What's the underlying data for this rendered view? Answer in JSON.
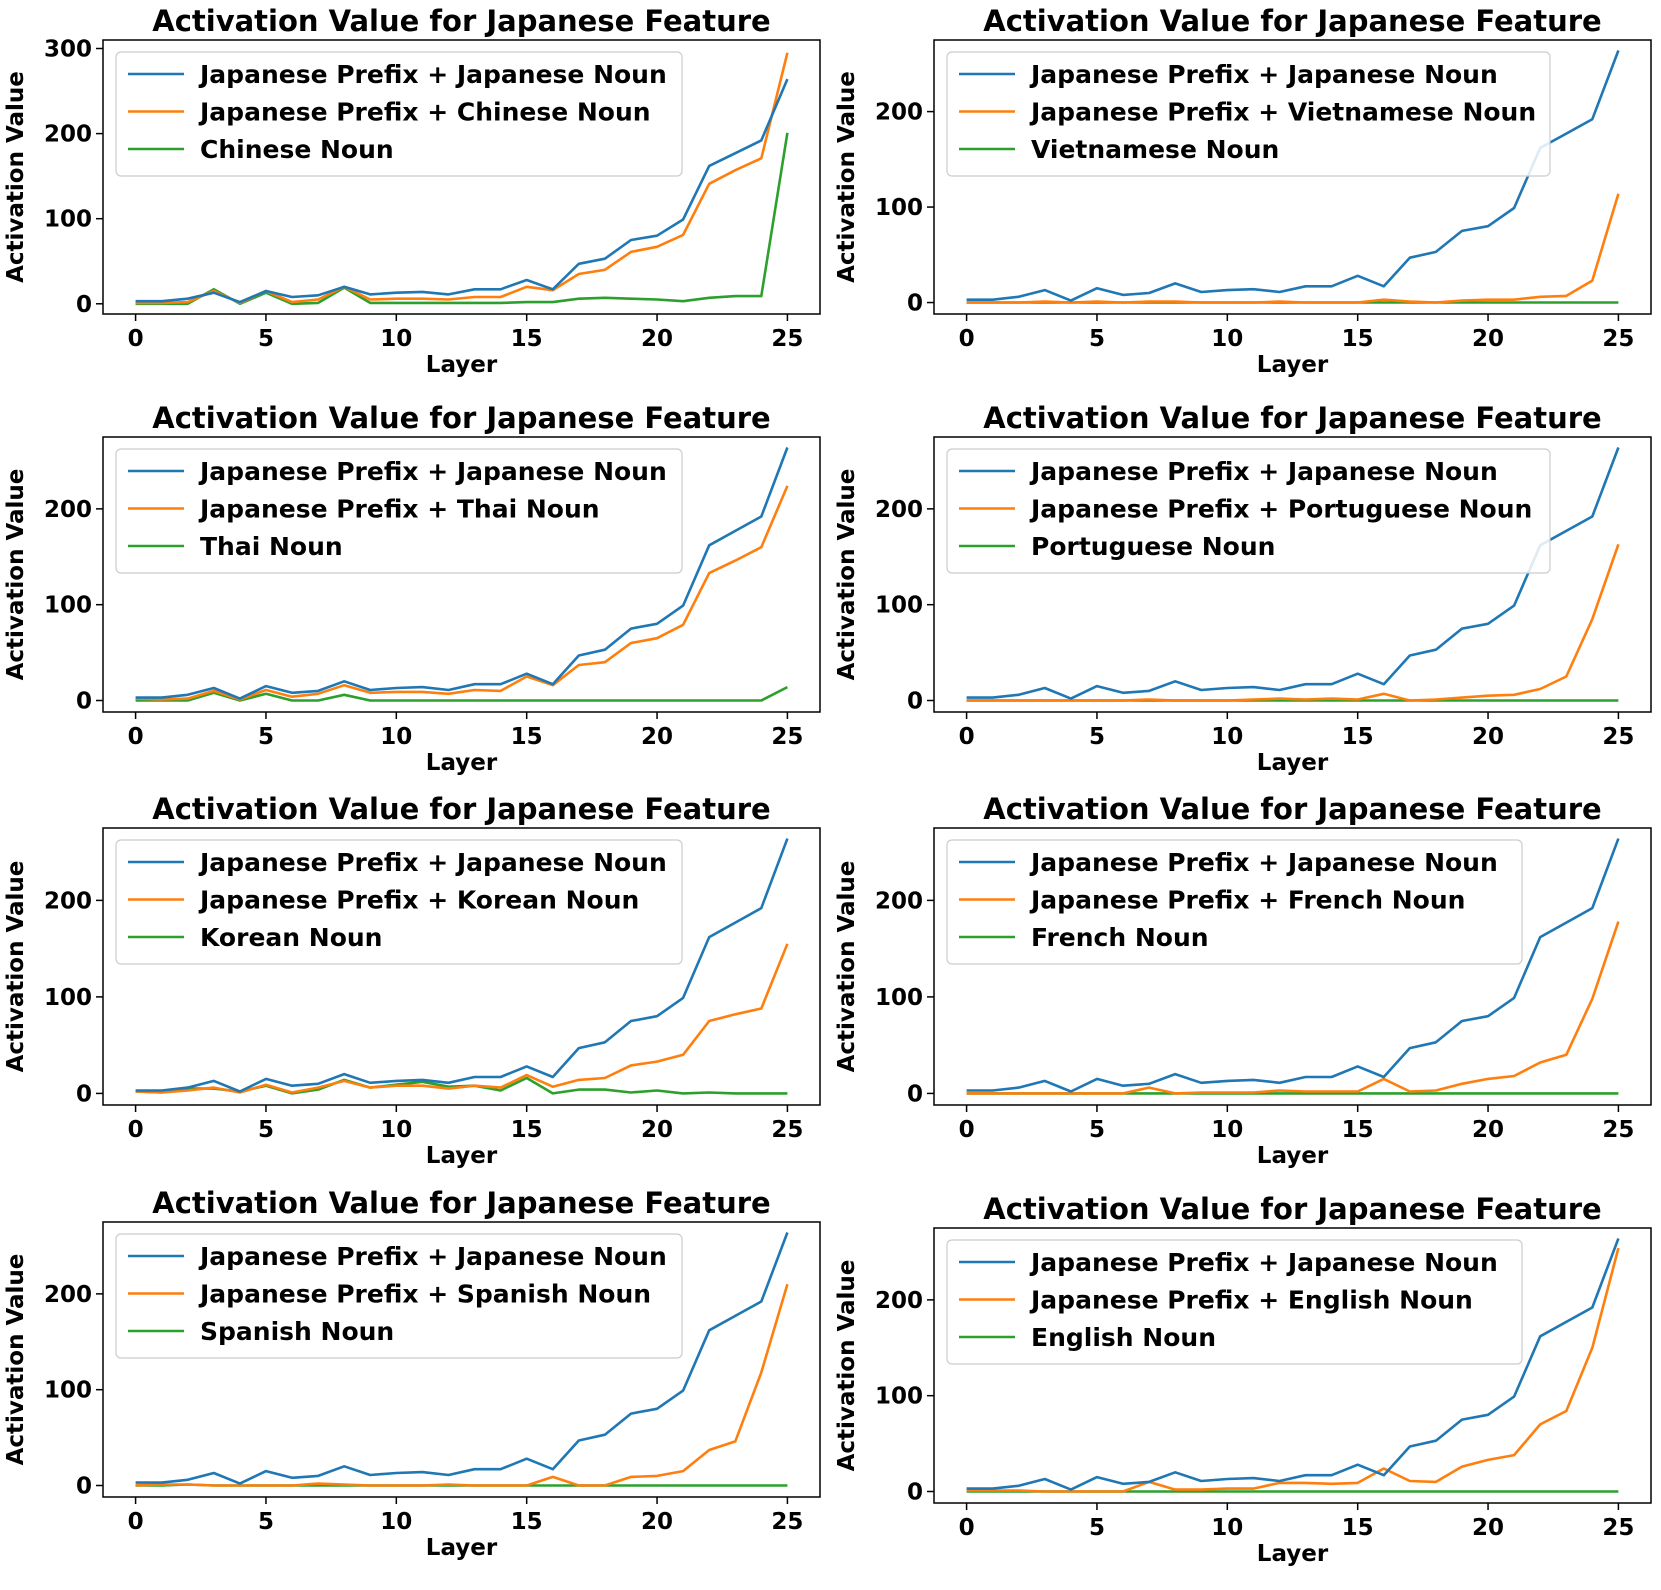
{
  "colors": {
    "s1": "#1f77b4",
    "s2": "#ff7f0e",
    "s3": "#2ca02c"
  },
  "chart_data": [
    {
      "type": "line",
      "title": "Activation Value for Japanese Feature",
      "xlabel": "Layer",
      "ylabel": "Activation Value",
      "xlim": [
        -1.25,
        26.25
      ],
      "ylim": [
        -12,
        310
      ],
      "xticks": [
        0,
        5,
        10,
        15,
        20,
        25
      ],
      "yticks": [
        0,
        100,
        200,
        300
      ],
      "legend_position": "upper-left",
      "series": [
        {
          "name": "Japanese Prefix + Japanese Noun",
          "values": [
            3,
            3,
            6,
            13,
            2,
            15,
            8,
            10,
            20,
            11,
            13,
            14,
            11,
            17,
            17,
            28,
            17,
            47,
            53,
            75,
            80,
            99,
            162,
            177,
            192,
            264
          ]
        },
        {
          "name": "Japanese Prefix + Chinese Noun",
          "values": [
            1,
            1,
            2,
            15,
            1,
            15,
            2,
            5,
            20,
            5,
            6,
            6,
            5,
            8,
            8,
            20,
            16,
            35,
            40,
            61,
            67,
            81,
            141,
            157,
            171,
            295
          ]
        },
        {
          "name": "Chinese Noun",
          "values": [
            0,
            0,
            0,
            17,
            0,
            13,
            0,
            1,
            19,
            1,
            1,
            1,
            1,
            1,
            1,
            2,
            2,
            6,
            7,
            6,
            5,
            3,
            7,
            9,
            9,
            201
          ]
        }
      ]
    },
    {
      "type": "line",
      "title": "Activation Value for Japanese Feature",
      "xlabel": "Layer",
      "ylabel": "Activation Value",
      "xlim": [
        -1.25,
        26.25
      ],
      "ylim": [
        -12,
        275
      ],
      "xticks": [
        0,
        5,
        10,
        15,
        20,
        25
      ],
      "yticks": [
        0,
        100,
        200
      ],
      "legend_position": "upper-left",
      "series": [
        {
          "name": "Japanese Prefix + Japanese Noun",
          "values": [
            3,
            3,
            6,
            13,
            2,
            15,
            8,
            10,
            20,
            11,
            13,
            14,
            11,
            17,
            17,
            28,
            17,
            47,
            53,
            75,
            80,
            99,
            162,
            177,
            192,
            264
          ]
        },
        {
          "name": "Japanese Prefix + Vietnamese Noun",
          "values": [
            0,
            0,
            0,
            1,
            0,
            1,
            0,
            1,
            1,
            0,
            0,
            0,
            1,
            0,
            0,
            0,
            3,
            1,
            0,
            2,
            3,
            3,
            6,
            7,
            23,
            114
          ]
        },
        {
          "name": "Vietnamese Noun",
          "values": [
            0,
            0,
            0,
            0,
            0,
            0,
            0,
            0,
            0,
            0,
            0,
            0,
            0,
            0,
            0,
            0,
            0,
            0,
            0,
            0,
            0,
            0,
            0,
            0,
            0,
            0
          ]
        }
      ]
    },
    {
      "type": "line",
      "title": "Activation Value for Japanese Feature",
      "xlabel": "Layer",
      "ylabel": "Activation Value",
      "xlim": [
        -1.25,
        26.25
      ],
      "ylim": [
        -12,
        275
      ],
      "xticks": [
        0,
        5,
        10,
        15,
        20,
        25
      ],
      "yticks": [
        0,
        100,
        200
      ],
      "legend_position": "upper-left",
      "series": [
        {
          "name": "Japanese Prefix + Japanese Noun",
          "values": [
            3,
            3,
            6,
            13,
            2,
            15,
            8,
            10,
            20,
            11,
            13,
            14,
            11,
            17,
            17,
            28,
            17,
            47,
            53,
            75,
            80,
            99,
            162,
            177,
            192,
            264
          ]
        },
        {
          "name": "Japanese Prefix + Thai Noun",
          "values": [
            2,
            1,
            2,
            10,
            1,
            11,
            4,
            7,
            16,
            8,
            9,
            9,
            7,
            11,
            10,
            25,
            16,
            37,
            40,
            60,
            65,
            79,
            133,
            146,
            160,
            224
          ]
        },
        {
          "name": "Thai Noun",
          "values": [
            0,
            0,
            0,
            8,
            0,
            7,
            0,
            0,
            6,
            0,
            0,
            0,
            0,
            0,
            0,
            0,
            0,
            0,
            0,
            0,
            0,
            0,
            0,
            0,
            0,
            14
          ]
        }
      ]
    },
    {
      "type": "line",
      "title": "Activation Value for Japanese Feature",
      "xlabel": "Layer",
      "ylabel": "Activation Value",
      "xlim": [
        -1.25,
        26.25
      ],
      "ylim": [
        -12,
        275
      ],
      "xticks": [
        0,
        5,
        10,
        15,
        20,
        25
      ],
      "yticks": [
        0,
        100,
        200
      ],
      "legend_position": "upper-left",
      "series": [
        {
          "name": "Japanese Prefix + Japanese Noun",
          "values": [
            3,
            3,
            6,
            13,
            2,
            15,
            8,
            10,
            20,
            11,
            13,
            14,
            11,
            17,
            17,
            28,
            17,
            47,
            53,
            75,
            80,
            99,
            162,
            177,
            192,
            264
          ]
        },
        {
          "name": "Japanese Prefix + Portuguese Noun",
          "values": [
            0,
            0,
            0,
            0,
            0,
            0,
            0,
            1,
            0,
            0,
            0,
            1,
            2,
            1,
            2,
            1,
            7,
            0,
            1,
            3,
            5,
            6,
            12,
            25,
            85,
            163
          ]
        },
        {
          "name": "Portuguese Noun",
          "values": [
            0,
            0,
            0,
            0,
            0,
            0,
            0,
            0,
            0,
            0,
            0,
            0,
            0,
            0,
            0,
            0,
            0,
            0,
            0,
            0,
            0,
            0,
            0,
            0,
            0,
            0
          ]
        }
      ]
    },
    {
      "type": "line",
      "title": "Activation Value for Japanese Feature",
      "xlabel": "Layer",
      "ylabel": "Activation Value",
      "xlim": [
        -1.25,
        26.25
      ],
      "ylim": [
        -12,
        275
      ],
      "xticks": [
        0,
        5,
        10,
        15,
        20,
        25
      ],
      "yticks": [
        0,
        100,
        200
      ],
      "legend_position": "upper-left",
      "series": [
        {
          "name": "Japanese Prefix + Japanese Noun",
          "values": [
            3,
            3,
            6,
            13,
            2,
            15,
            8,
            10,
            20,
            11,
            13,
            14,
            11,
            17,
            17,
            28,
            17,
            47,
            53,
            75,
            80,
            99,
            162,
            177,
            192,
            264
          ]
        },
        {
          "name": "Japanese Prefix + Korean Noun",
          "values": [
            2,
            1,
            3,
            6,
            1,
            9,
            1,
            6,
            13,
            6,
            8,
            8,
            5,
            8,
            6,
            19,
            7,
            14,
            16,
            29,
            33,
            40,
            75,
            82,
            88,
            155
          ]
        },
        {
          "name": "Korean Noun",
          "values": [
            2,
            1,
            5,
            5,
            2,
            8,
            0,
            4,
            14,
            6,
            9,
            12,
            7,
            8,
            3,
            16,
            0,
            4,
            4,
            1,
            3,
            0,
            1,
            0,
            0,
            0
          ]
        }
      ]
    },
    {
      "type": "line",
      "title": "Activation Value for Japanese Feature",
      "xlabel": "Layer",
      "ylabel": "Activation Value",
      "xlim": [
        -1.25,
        26.25
      ],
      "ylim": [
        -12,
        275
      ],
      "xticks": [
        0,
        5,
        10,
        15,
        20,
        25
      ],
      "yticks": [
        0,
        100,
        200
      ],
      "legend_position": "upper-left",
      "series": [
        {
          "name": "Japanese Prefix + Japanese Noun",
          "values": [
            3,
            3,
            6,
            13,
            2,
            15,
            8,
            10,
            20,
            11,
            13,
            14,
            11,
            17,
            17,
            28,
            17,
            47,
            53,
            75,
            80,
            99,
            162,
            177,
            192,
            264
          ]
        },
        {
          "name": "Japanese Prefix + French Noun",
          "values": [
            0,
            0,
            0,
            0,
            0,
            0,
            0,
            6,
            0,
            1,
            1,
            1,
            3,
            2,
            2,
            2,
            15,
            2,
            3,
            10,
            15,
            18,
            32,
            40,
            98,
            178
          ]
        },
        {
          "name": "French Noun",
          "values": [
            0,
            0,
            0,
            0,
            0,
            0,
            0,
            0,
            0,
            0,
            0,
            0,
            0,
            0,
            0,
            0,
            0,
            0,
            0,
            0,
            0,
            0,
            0,
            0,
            0,
            0
          ]
        }
      ]
    },
    {
      "type": "line",
      "title": "Activation Value for Japanese Feature",
      "xlabel": "Layer",
      "ylabel": "Activation Value",
      "xlim": [
        -1.25,
        26.25
      ],
      "ylim": [
        -12,
        275
      ],
      "xticks": [
        0,
        5,
        10,
        15,
        20,
        25
      ],
      "yticks": [
        0,
        100,
        200
      ],
      "legend_position": "upper-left",
      "series": [
        {
          "name": "Japanese Prefix + Japanese Noun",
          "values": [
            3,
            3,
            6,
            13,
            2,
            15,
            8,
            10,
            20,
            11,
            13,
            14,
            11,
            17,
            17,
            28,
            17,
            47,
            53,
            75,
            80,
            99,
            162,
            177,
            192,
            264
          ]
        },
        {
          "name": "Japanese Prefix + Spanish Noun",
          "values": [
            0,
            1,
            1,
            0,
            0,
            0,
            0,
            2,
            1,
            0,
            0,
            0,
            1,
            0,
            0,
            0,
            9,
            0,
            0,
            9,
            10,
            15,
            37,
            46,
            118,
            210
          ]
        },
        {
          "name": "Spanish Noun",
          "values": [
            0,
            0,
            1,
            0,
            0,
            0,
            0,
            0,
            0,
            0,
            0,
            0,
            0,
            0,
            0,
            0,
            0,
            0,
            0,
            0,
            0,
            0,
            0,
            0,
            0,
            0
          ]
        }
      ]
    },
    {
      "type": "line",
      "title": "Activation Value for Japanese Feature",
      "xlabel": "Layer",
      "ylabel": "Activation Value",
      "xlim": [
        -1.25,
        26.25
      ],
      "ylim": [
        -12,
        275
      ],
      "xticks": [
        0,
        5,
        10,
        15,
        20,
        25
      ],
      "yticks": [
        0,
        100,
        200
      ],
      "legend_position": "upper-left",
      "series": [
        {
          "name": "Japanese Prefix + Japanese Noun",
          "values": [
            3,
            3,
            6,
            13,
            2,
            15,
            8,
            10,
            20,
            11,
            13,
            14,
            11,
            17,
            17,
            28,
            17,
            47,
            53,
            75,
            80,
            99,
            162,
            177,
            192,
            264
          ]
        },
        {
          "name": "Japanese Prefix + English Noun",
          "values": [
            1,
            1,
            1,
            0,
            0,
            0,
            0,
            10,
            2,
            2,
            3,
            3,
            9,
            9,
            8,
            9,
            24,
            11,
            10,
            26,
            33,
            38,
            70,
            84,
            150,
            254
          ]
        },
        {
          "name": "English Noun",
          "values": [
            0,
            0,
            0,
            0,
            0,
            0,
            0,
            0,
            0,
            0,
            0,
            0,
            0,
            0,
            0,
            0,
            0,
            0,
            0,
            0,
            0,
            0,
            0,
            0,
            0,
            0
          ]
        }
      ]
    }
  ]
}
